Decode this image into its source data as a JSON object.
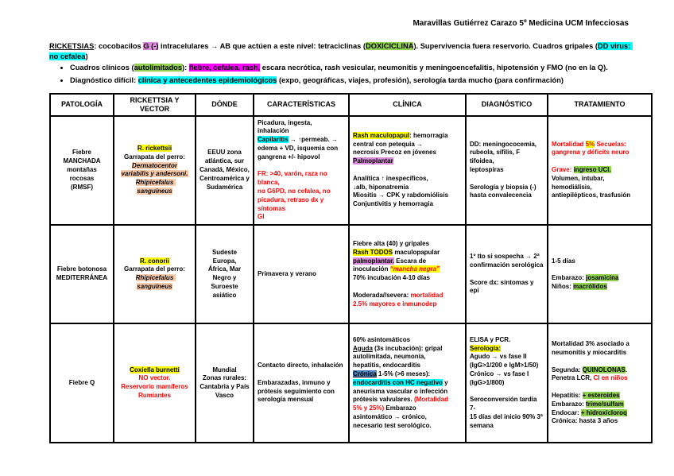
{
  "header": {
    "author_line": "Maravillas Gutiérrez Carazo 5º Medicina UCM Infecciosas"
  },
  "intro": {
    "runs": [
      {
        "t": "RICKETSIAS",
        "c": "u"
      },
      {
        "t": ": cocobacilos "
      },
      {
        "t": "G (-)",
        "c": "hv"
      },
      {
        "t": " intracelulares → AB que actúen a este nivel: tetraciclinas ("
      },
      {
        "t": "DOXICICLINA",
        "c": "hg"
      },
      {
        "t": "). Supervivencia fuera reservorio. Cuadros gripales ("
      },
      {
        "t": "DD virus: no cefalea",
        "c": "hc"
      },
      {
        "t": ")"
      }
    ]
  },
  "bullets": [
    {
      "runs": [
        {
          "t": "Cuadros clínicos ("
        },
        {
          "t": "autolimitados",
          "c": "hg"
        },
        {
          "t": "): "
        },
        {
          "t": "fiebre, cefalea, rash,",
          "c": "hm"
        },
        {
          "t": " escara necrótica, rash vesicular, neumonitis y meningoencefalitis, hipotensión y FMO (no en la Q)."
        }
      ]
    },
    {
      "runs": [
        {
          "t": "Diagnóstico difícil: "
        },
        {
          "t": "clínica y antecedentes epidemiológicos",
          "c": "hc"
        },
        {
          "t": " (expo, geográficas, viajes, profesión), serología tarda mucho (para confirmación)"
        }
      ]
    }
  ],
  "table": {
    "headers": [
      "PATOLOGÍA",
      "RICKETTSIA Y VECTOR",
      "DÓNDE",
      "CARACTERÍSTICAS",
      "CLÍNICA",
      "DIAGNÓSTICO",
      "TRATAMIENTO"
    ],
    "rows": [
      {
        "patologia": [
          {
            "t": "Fiebre MANCHADA\nmontañas rocosas\n(RMSF)"
          }
        ],
        "rickettsia": [
          {
            "t": "R. rickettsii",
            "c": "hy"
          },
          {
            "t": "\nGarrapata del perro:\n"
          },
          {
            "t": "Dermatocentor\nvariabilis y andersoni.\nRhipicefalus sanguineus",
            "c": "i hp"
          }
        ],
        "donde": [
          {
            "t": "EEUU zona\natlántica, sur\nCanadá, México,\nCentroamérica y\nSudamérica"
          }
        ],
        "caracteristicas": [
          {
            "t": "Picadura, ingesta, inhalación\n"
          },
          {
            "t": "Capilaritis",
            "c": "hc"
          },
          {
            "t": " → ↑permeab. →\nedema + VD, isquemia con\ngangrena +/- hipovol\n\n"
          },
          {
            "t": "FR: >40, varón, raza no blanca,\nno G6PD, no cefalea, no\npicadura, retraso dx y síntomas\nGI",
            "c": "red"
          }
        ],
        "clinica": [
          {
            "t": "Rash maculopapul",
            "c": "hy"
          },
          {
            "t": ": hemorragia\ncentral con petequia →\nnecrosis Precoz en jóvenes\n"
          },
          {
            "t": "Palmoplantar",
            "c": "hv"
          },
          {
            "t": "\n\nAnalítica ↑ inespecíficos,\n↓alb, hiponatremia\nMiositis → CPK y rabdomiólisis\nConjuntivitis y hemorragia"
          }
        ],
        "diagnostico": [
          {
            "t": "DD: meningococemia,\nrubeola, sífilis, F tifoidea,\nleptospiras\n\nSerología y biopsia (-)\nhasta convalecencia"
          }
        ],
        "tratamiento": [
          {
            "t": "Mortalidad ",
            "c": "red"
          },
          {
            "t": "5%",
            "c": "red hy"
          },
          {
            "t": " Secuelas:\ngangrena y déficits neuro\n\n",
            "c": "red"
          },
          {
            "t": "Grave: ",
            "c": "red"
          },
          {
            "t": "ingreso UCI.",
            "c": "hg"
          },
          {
            "t": "\nVolumen, intubar,\nhemodiálisis,\nantiepilépticos, trasfusión"
          }
        ]
      },
      {
        "patologia": [
          {
            "t": "Fiebre botonosa\nMEDITERRÁNEA"
          }
        ],
        "rickettsia": [
          {
            "t": "R. conorii",
            "c": "hy"
          },
          {
            "t": "\nGarrapata del perro:\n"
          },
          {
            "t": "Rhipicefalus sanguineus",
            "c": "i hp"
          }
        ],
        "donde": [
          {
            "t": "Sudeste Europa,\nÁfrica, Mar\nNegro y\nSuroeste\nasiático"
          }
        ],
        "caracteristicas": [
          {
            "t": "Primavera y verano"
          }
        ],
        "clinica": [
          {
            "t": "Fiebre alta (40) y gripales\n"
          },
          {
            "t": "Rash TODOS",
            "c": "hy"
          },
          {
            "t": " maculopapular\n"
          },
          {
            "t": "palmoplantar.",
            "c": "hv"
          },
          {
            "t": " Escara de\ninoculación "
          },
          {
            "t": "“mancha negra”",
            "c": "i red hy"
          },
          {
            "t": "\n70% incubación 4-10 días\n\nModerada//severa: "
          },
          {
            "t": "mortalidad\n2.5% mayores e inmunodep",
            "c": "red"
          }
        ],
        "diagnostico": [
          {
            "t": "1º tto si sospecha → 2ª\nconfirmación serológica\n\nScore dx: síntomas y epi"
          }
        ],
        "tratamiento": [
          {
            "t": "1-5 días\n\nEmbarazo: "
          },
          {
            "t": "josamicina",
            "c": "hg"
          },
          {
            "t": "\nNiños: "
          },
          {
            "t": "macrólidos",
            "c": "hg"
          }
        ]
      },
      {
        "patologia": [
          {
            "t": "Fiebre Q"
          }
        ],
        "rickettsia": [
          {
            "t": "Coxiella burnetti",
            "c": "hy"
          },
          {
            "t": "\n"
          },
          {
            "t": "NO vector.\nReservorio mamíferos\nRumiantes",
            "c": "red"
          }
        ],
        "donde": [
          {
            "t": "Mundial\nZonas rurales:\nCantabria y País\nVasco"
          }
        ],
        "caracteristicas": [
          {
            "t": "Contacto directo, inhalación\n\nEmbarazadas, inmuno y\nprótesis seguimiento con\nserología mensual"
          }
        ],
        "clinica": [
          {
            "t": "60% asintomáticos\n"
          },
          {
            "t": "Aguda",
            "c": "u"
          },
          {
            "t": " (3s incubación): gripal\nautolimitada, neumonía,\nhepatitis, endocarditis\n"
          },
          {
            "t": "Crónica",
            "c": "u hb"
          },
          {
            "t": " 1-5% (>6 meses):\n"
          },
          {
            "t": "endocarditis con HC negativo",
            "c": "hc"
          },
          {
            "t": " y\naneurisma vascular o infección\nprótesis valvulares. "
          },
          {
            "t": "(Mortalidad\n5% y 25%)",
            "c": "red"
          },
          {
            "t": " Embarazo\nasintomático → crónico,\nnecesario test serológico."
          }
        ],
        "diagnostico": [
          {
            "t": "ELISA y PCR.\n"
          },
          {
            "t": "Serología:",
            "c": "hy"
          },
          {
            "t": "\nAgudo → vs fase II\n(IgG>1/200 e IgM>1/50)\nCrónico → vs fase I\n(IgG>1/800)\n\nSeroconversión tardía 7-\n15 días del inicio 90% 3ª\nsemana"
          }
        ],
        "tratamiento": [
          {
            "t": "Mortalidad 3% asociado a\nneumonitis y miocarditis\n\nSegunda: "
          },
          {
            "t": "QUINOLONAS",
            "c": "hg"
          },
          {
            "t": ".\nPenetra LCR, "
          },
          {
            "t": "CI en niños",
            "c": "red"
          },
          {
            "t": "\n\nHepatitis: "
          },
          {
            "t": "+ esteroides",
            "c": "hg"
          },
          {
            "t": "\nEmbarazo: "
          },
          {
            "t": "trime/sulfam",
            "c": "hg"
          },
          {
            "t": "\nEndocar: "
          },
          {
            "t": "+ hidroxicloroq",
            "c": "hg"
          },
          {
            "t": "\nCrónica: hasta 3 años"
          }
        ]
      }
    ]
  },
  "colors": {
    "highlight_yellow": "#ffff00",
    "highlight_green": "#92d050",
    "highlight_cyan": "#00ffff",
    "highlight_magenta": "#ff00ff",
    "highlight_violet": "#d98cd9",
    "highlight_peach": "#f8cbad",
    "highlight_blue": "#4f81bd",
    "text_red": "#ff0000"
  }
}
